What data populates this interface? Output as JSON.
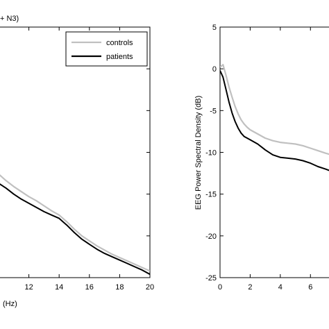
{
  "chart_data": [
    {
      "panel": "left",
      "type": "line",
      "title_fragment": "+ N3)",
      "xlabel_fragment": "(Hz)",
      "xlim": [
        10,
        20
      ],
      "ylim": [
        -25,
        5
      ],
      "x_ticks": [
        "12",
        "14",
        "16",
        "18",
        "20"
      ],
      "legend": {
        "placement": "top-right",
        "entries": [
          "controls",
          "patients"
        ]
      },
      "series": [
        {
          "name": "controls",
          "color": "#c0c0c0",
          "points": [
            [
              10,
              -12.6
            ],
            [
              10.5,
              -13.4
            ],
            [
              11,
              -14.1
            ],
            [
              11.5,
              -14.7
            ],
            [
              12,
              -15.3
            ],
            [
              12.5,
              -15.8
            ],
            [
              13,
              -16.4
            ],
            [
              13.5,
              -17.0
            ],
            [
              14,
              -17.5
            ],
            [
              14.5,
              -18.3
            ],
            [
              15,
              -19.2
            ],
            [
              15.5,
              -20.0
            ],
            [
              16,
              -20.6
            ],
            [
              16.5,
              -21.2
            ],
            [
              17,
              -21.7
            ],
            [
              17.5,
              -22.2
            ],
            [
              18,
              -22.6
            ],
            [
              18.5,
              -23.0
            ],
            [
              19,
              -23.4
            ],
            [
              19.5,
              -23.8
            ],
            [
              20,
              -24.2
            ]
          ]
        },
        {
          "name": "patients",
          "color": "#000000",
          "points": [
            [
              10,
              -13.7
            ],
            [
              10.5,
              -14.3
            ],
            [
              11,
              -15.0
            ],
            [
              11.5,
              -15.6
            ],
            [
              12,
              -16.1
            ],
            [
              12.5,
              -16.6
            ],
            [
              13,
              -17.1
            ],
            [
              13.5,
              -17.5
            ],
            [
              14,
              -17.9
            ],
            [
              14.5,
              -18.7
            ],
            [
              15,
              -19.6
            ],
            [
              15.5,
              -20.4
            ],
            [
              16,
              -21.0
            ],
            [
              16.5,
              -21.6
            ],
            [
              17,
              -22.1
            ],
            [
              17.5,
              -22.5
            ],
            [
              18,
              -22.9
            ],
            [
              18.5,
              -23.3
            ],
            [
              19,
              -23.7
            ],
            [
              19.5,
              -24.1
            ],
            [
              20,
              -24.6
            ]
          ]
        }
      ]
    },
    {
      "panel": "right",
      "type": "line",
      "ylabel": "EEG Power Spectral Density (dB)",
      "xlim": [
        0,
        7.6
      ],
      "ylim": [
        -25,
        5
      ],
      "x_ticks": [
        "0",
        "2",
        "4",
        "6"
      ],
      "y_ticks": [
        "5",
        "0",
        "-5",
        "-10",
        "-15",
        "-20",
        "-25"
      ],
      "series": [
        {
          "name": "controls",
          "color": "#c0c0c0",
          "points": [
            [
              0,
              0.2
            ],
            [
              0.2,
              0.5
            ],
            [
              0.4,
              -0.8
            ],
            [
              0.6,
              -2.2
            ],
            [
              0.8,
              -3.4
            ],
            [
              1.0,
              -4.5
            ],
            [
              1.2,
              -5.4
            ],
            [
              1.4,
              -6.1
            ],
            [
              1.6,
              -6.6
            ],
            [
              1.8,
              -7.0
            ],
            [
              2.0,
              -7.3
            ],
            [
              2.5,
              -7.8
            ],
            [
              3.0,
              -8.3
            ],
            [
              3.5,
              -8.6
            ],
            [
              4.0,
              -8.8
            ],
            [
              4.5,
              -8.9
            ],
            [
              5.0,
              -9.0
            ],
            [
              5.5,
              -9.2
            ],
            [
              6.0,
              -9.5
            ],
            [
              6.5,
              -9.8
            ],
            [
              7.0,
              -10.1
            ],
            [
              7.6,
              -10.4
            ]
          ]
        },
        {
          "name": "patients",
          "color": "#000000",
          "points": [
            [
              0,
              -0.2
            ],
            [
              0.2,
              -1.0
            ],
            [
              0.4,
              -2.5
            ],
            [
              0.6,
              -4.0
            ],
            [
              0.8,
              -5.3
            ],
            [
              1.0,
              -6.3
            ],
            [
              1.2,
              -7.1
            ],
            [
              1.4,
              -7.7
            ],
            [
              1.6,
              -8.1
            ],
            [
              1.8,
              -8.3
            ],
            [
              2.0,
              -8.5
            ],
            [
              2.5,
              -9.0
            ],
            [
              3.0,
              -9.7
            ],
            [
              3.5,
              -10.3
            ],
            [
              4.0,
              -10.6
            ],
            [
              4.5,
              -10.7
            ],
            [
              5.0,
              -10.8
            ],
            [
              5.5,
              -11.0
            ],
            [
              6.0,
              -11.3
            ],
            [
              6.5,
              -11.7
            ],
            [
              7.0,
              -12.0
            ],
            [
              7.6,
              -12.4
            ]
          ]
        }
      ]
    }
  ]
}
